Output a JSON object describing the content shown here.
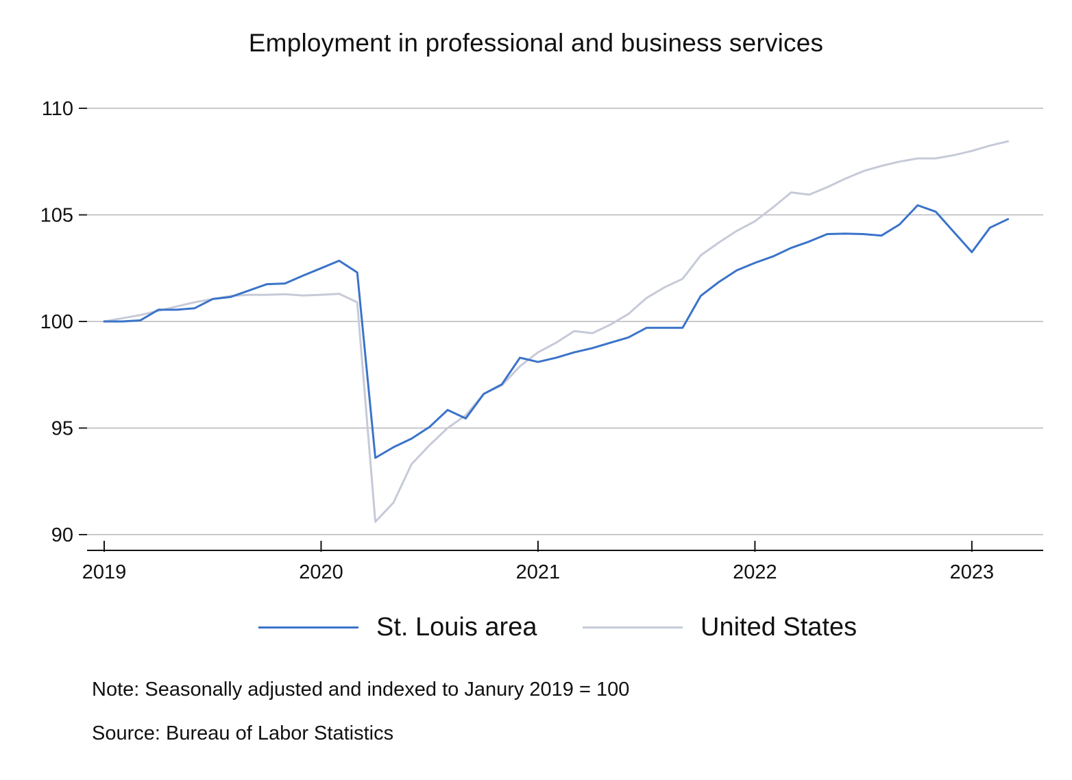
{
  "chart_data": {
    "type": "line",
    "title": "Employment in professional and business services",
    "xlabel": "",
    "ylabel": "",
    "ylim": [
      90,
      110
    ],
    "yticks": [
      90,
      95,
      100,
      105,
      110
    ],
    "xlim": [
      2019,
      2023.25
    ],
    "xticks": [
      2019,
      2020,
      2021,
      2022,
      2023
    ],
    "x_tick_labels": [
      "2019",
      "2020",
      "2021",
      "2022",
      "2023"
    ],
    "grid": "horizontal",
    "legend_position": "bottom",
    "x": [
      "2019-01",
      "2019-02",
      "2019-03",
      "2019-04",
      "2019-05",
      "2019-06",
      "2019-07",
      "2019-08",
      "2019-09",
      "2019-10",
      "2019-11",
      "2019-12",
      "2020-01",
      "2020-02",
      "2020-03",
      "2020-04",
      "2020-05",
      "2020-06",
      "2020-07",
      "2020-08",
      "2020-09",
      "2020-10",
      "2020-11",
      "2020-12",
      "2021-01",
      "2021-02",
      "2021-03",
      "2021-04",
      "2021-05",
      "2021-06",
      "2021-07",
      "2021-08",
      "2021-09",
      "2021-10",
      "2021-11",
      "2021-12",
      "2022-01",
      "2022-02",
      "2022-03",
      "2022-04",
      "2022-05",
      "2022-06",
      "2022-07",
      "2022-08",
      "2022-09",
      "2022-10",
      "2022-11",
      "2022-12",
      "2023-01",
      "2023-02",
      "2023-03"
    ],
    "series": [
      {
        "name": "St. Louis area",
        "color": "#3a73c9",
        "values": [
          100.0,
          100.0,
          100.05,
          100.55,
          100.55,
          100.62,
          101.05,
          101.15,
          101.45,
          101.75,
          101.78,
          102.15,
          102.5,
          102.85,
          102.3,
          93.6,
          94.1,
          94.5,
          95.05,
          95.85,
          95.45,
          96.6,
          97.05,
          98.3,
          98.1,
          98.3,
          98.55,
          98.75,
          99.0,
          99.25,
          99.7,
          99.7,
          99.7,
          101.2,
          101.85,
          102.4,
          102.75,
          103.05,
          103.45,
          103.75,
          104.1,
          104.12,
          104.1,
          104.03,
          104.55,
          105.45,
          105.15,
          104.2,
          103.25,
          104.4,
          104.8
        ]
      },
      {
        "name": "United States",
        "color": "#c6cad8",
        "values": [
          100.0,
          100.15,
          100.3,
          100.5,
          100.7,
          100.9,
          101.05,
          101.2,
          101.25,
          101.25,
          101.28,
          101.22,
          101.25,
          101.3,
          100.9,
          90.6,
          91.5,
          93.3,
          94.2,
          95.0,
          95.6,
          96.6,
          97.0,
          97.9,
          98.55,
          99.0,
          99.55,
          99.45,
          99.85,
          100.35,
          101.1,
          101.6,
          102.0,
          103.1,
          103.7,
          104.25,
          104.7,
          105.35,
          106.05,
          105.95,
          106.3,
          106.7,
          107.05,
          107.3,
          107.5,
          107.65,
          107.65,
          107.8,
          108.0,
          108.25,
          108.45
        ]
      }
    ]
  },
  "footer": {
    "note": "Note: Seasonally adjusted and indexed to Janury 2019 = 100",
    "source": "Source: Bureau of Labor Statistics"
  }
}
